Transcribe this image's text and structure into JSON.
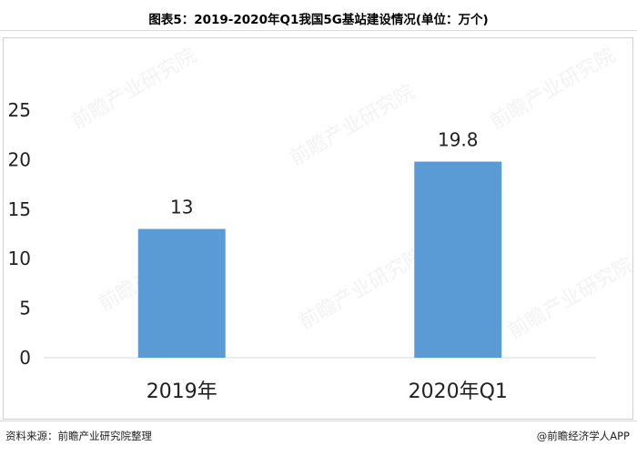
{
  "header": {
    "title": "图表5：2019-2020年Q1我国5G基站建设情况(单位：万个)"
  },
  "footer": {
    "source": "资料来源：前瞻产业研究院整理",
    "app_mark": "@前瞻经济学人APP"
  },
  "watermark": "前瞻产业研究院",
  "chart_data": {
    "type": "bar",
    "title": "图表5：2019-2020年Q1我国5G基站建设情况(单位：万个)",
    "categories": [
      "2019年",
      "2020年Q1"
    ],
    "values": [
      13,
      19.8
    ],
    "data_labels": [
      "13",
      "19.8"
    ],
    "xlabel": "",
    "ylabel": "",
    "ylim": [
      0,
      25
    ],
    "yticks": [
      0,
      5,
      10,
      15,
      20,
      25
    ],
    "grid": false,
    "bar_color": "#5B9BD5",
    "axis_color": "#d9d9d9",
    "legend": "none"
  }
}
